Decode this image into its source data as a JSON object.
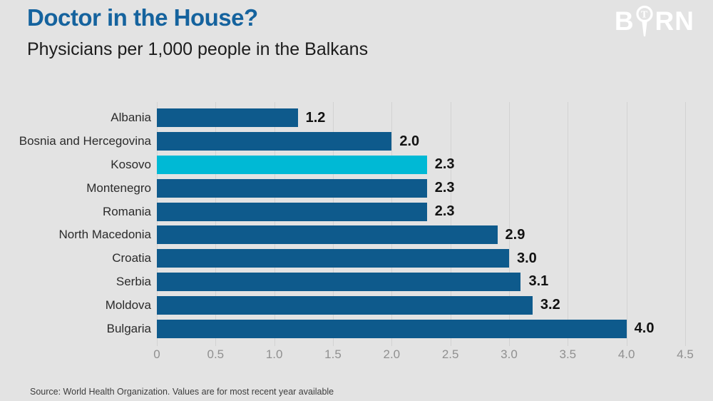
{
  "header": {
    "title": "Doctor in the House?",
    "subtitle": "Physicians per 1,000 people in the Balkans"
  },
  "logo": {
    "text_left": "B",
    "text_right": "RN",
    "icon": "magnifier-t-icon",
    "color": "#ffffff"
  },
  "source": {
    "text": "Source: World Health Organization. Values are for most recent year available"
  },
  "colors": {
    "background": "#e3e3e3",
    "title": "#15639e",
    "bar": "#0e5a8c",
    "highlight_bar": "#00b9d5",
    "gridline": "#d2d2d2",
    "tick_label": "#909090",
    "category_label": "#2b2b2b",
    "value_label": "#121212"
  },
  "chart_data": {
    "type": "bar",
    "orientation": "horizontal",
    "title": "Doctor in the House?",
    "subtitle": "Physicians per 1,000 people in the Balkans",
    "categories": [
      "Albania",
      "Bosnia and Hercegovina",
      "Kosovo",
      "Montenegro",
      "Romania",
      "North Macedonia",
      "Croatia",
      "Serbia",
      "Moldova",
      "Bulgaria"
    ],
    "values": [
      1.2,
      2.0,
      2.3,
      2.3,
      2.3,
      2.9,
      3.0,
      3.1,
      3.2,
      4.0
    ],
    "value_labels": [
      "1.2",
      "2.0",
      "2.3",
      "2.3",
      "2.3",
      "2.9",
      "3.0",
      "3.1",
      "3.2",
      "4.0"
    ],
    "highlighted_category": "Kosovo",
    "xlim": [
      0,
      4.5
    ],
    "xticks": [
      0,
      0.5,
      1.0,
      1.5,
      2.0,
      2.5,
      3.0,
      3.5,
      4.0,
      4.5
    ],
    "xtick_labels": [
      "0",
      "0.5",
      "1.0",
      "1.5",
      "2.0",
      "2.5",
      "3.0",
      "3.5",
      "4.0",
      "4.5"
    ],
    "grid": true,
    "legend": false
  }
}
